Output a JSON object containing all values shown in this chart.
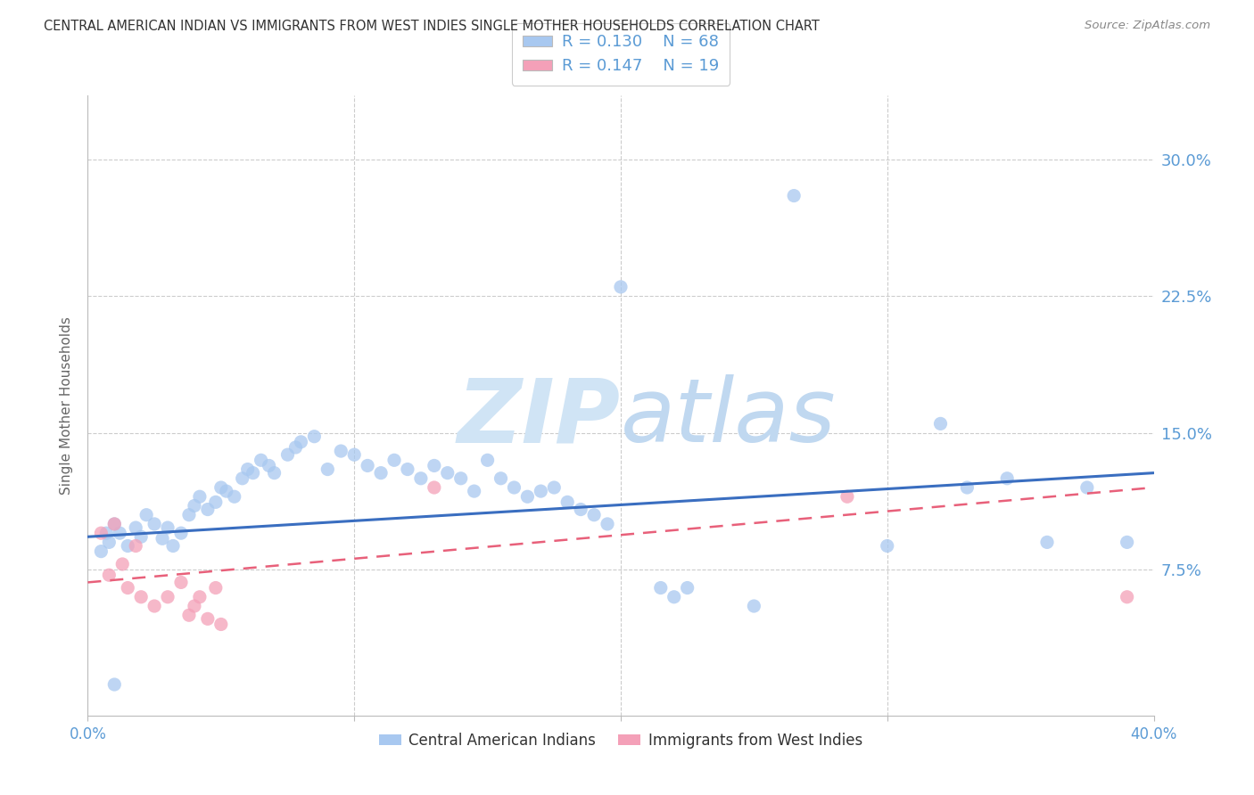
{
  "title": "CENTRAL AMERICAN INDIAN VS IMMIGRANTS FROM WEST INDIES SINGLE MOTHER HOUSEHOLDS CORRELATION CHART",
  "source": "Source: ZipAtlas.com",
  "ylabel": "Single Mother Households",
  "ytick_labels": [
    "7.5%",
    "15.0%",
    "22.5%",
    "30.0%"
  ],
  "ytick_values": [
    0.075,
    0.15,
    0.225,
    0.3
  ],
  "xlim": [
    0.0,
    0.4
  ],
  "ylim": [
    -0.005,
    0.335
  ],
  "legend1_label": "Central American Indians",
  "legend2_label": "Immigrants from West Indies",
  "R1": 0.13,
  "N1": 68,
  "R2": 0.147,
  "N2": 19,
  "blue_color": "#A8C8F0",
  "pink_color": "#F4A0B8",
  "blue_line_color": "#3A6EC0",
  "pink_line_color": "#E8607A",
  "axis_label_color": "#5B9BD5",
  "watermark_color": "#D0E4F5",
  "blue_scatter_x": [
    0.005,
    0.007,
    0.008,
    0.01,
    0.012,
    0.015,
    0.018,
    0.02,
    0.022,
    0.025,
    0.028,
    0.03,
    0.032,
    0.035,
    0.038,
    0.04,
    0.042,
    0.045,
    0.048,
    0.05,
    0.052,
    0.055,
    0.058,
    0.06,
    0.062,
    0.065,
    0.068,
    0.07,
    0.075,
    0.078,
    0.08,
    0.085,
    0.09,
    0.095,
    0.1,
    0.105,
    0.11,
    0.115,
    0.12,
    0.125,
    0.13,
    0.135,
    0.14,
    0.145,
    0.15,
    0.155,
    0.16,
    0.165,
    0.17,
    0.175,
    0.18,
    0.185,
    0.19,
    0.195,
    0.2,
    0.215,
    0.22,
    0.225,
    0.25,
    0.265,
    0.3,
    0.32,
    0.33,
    0.345,
    0.36,
    0.375,
    0.39,
    0.01
  ],
  "blue_scatter_y": [
    0.085,
    0.095,
    0.09,
    0.1,
    0.095,
    0.088,
    0.098,
    0.093,
    0.105,
    0.1,
    0.092,
    0.098,
    0.088,
    0.095,
    0.105,
    0.11,
    0.115,
    0.108,
    0.112,
    0.12,
    0.118,
    0.115,
    0.125,
    0.13,
    0.128,
    0.135,
    0.132,
    0.128,
    0.138,
    0.142,
    0.145,
    0.148,
    0.13,
    0.14,
    0.138,
    0.132,
    0.128,
    0.135,
    0.13,
    0.125,
    0.132,
    0.128,
    0.125,
    0.118,
    0.135,
    0.125,
    0.12,
    0.115,
    0.118,
    0.12,
    0.112,
    0.108,
    0.105,
    0.1,
    0.23,
    0.065,
    0.06,
    0.065,
    0.055,
    0.28,
    0.088,
    0.155,
    0.12,
    0.125,
    0.09,
    0.12,
    0.09,
    0.012
  ],
  "pink_scatter_x": [
    0.005,
    0.008,
    0.01,
    0.013,
    0.015,
    0.018,
    0.02,
    0.025,
    0.03,
    0.035,
    0.038,
    0.04,
    0.042,
    0.045,
    0.048,
    0.05,
    0.13,
    0.285,
    0.39
  ],
  "pink_scatter_y": [
    0.095,
    0.072,
    0.1,
    0.078,
    0.065,
    0.088,
    0.06,
    0.055,
    0.06,
    0.068,
    0.05,
    0.055,
    0.06,
    0.048,
    0.065,
    0.045,
    0.12,
    0.115,
    0.06
  ],
  "blue_trend_x": [
    0.0,
    0.4
  ],
  "blue_trend_y": [
    0.093,
    0.128
  ],
  "pink_trend_x": [
    0.0,
    0.4
  ],
  "pink_trend_y": [
    0.068,
    0.12
  ]
}
